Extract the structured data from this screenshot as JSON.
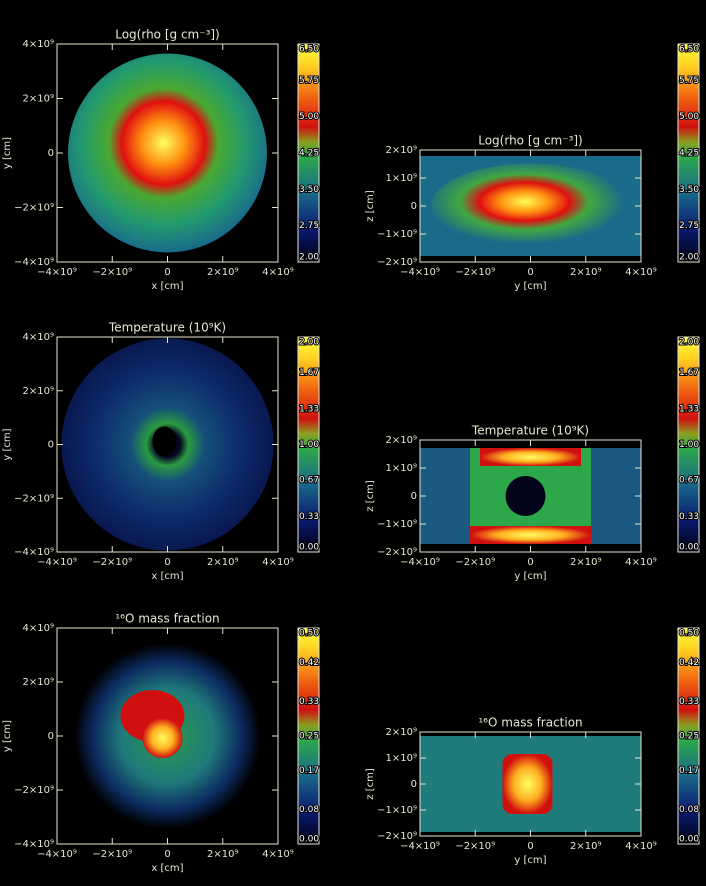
{
  "panels": [
    {
      "title": "Log(rho [g cm⁻³])",
      "x_label": "x [cm]",
      "y_label": "y [cm]",
      "xlim": [
        -4000000000,
        4000000000
      ],
      "ylim": [
        -4000000000,
        4000000000
      ],
      "xticks": [
        {
          "value": -4000000000,
          "label": "−4×10⁹"
        },
        {
          "value": -2000000000,
          "label": "−2×10⁹"
        },
        0,
        {
          "value": 2000000000,
          "label": "2×10⁹"
        },
        {
          "value": 4000000000,
          "label": "4×10⁹"
        }
      ],
      "yticks": [
        {
          "value": -4000000000,
          "label": "−4×10⁹"
        },
        {
          "value": -2000000000,
          "label": "−2×10⁹"
        },
        0,
        {
          "value": 2000000000,
          "label": "2×10⁹"
        },
        {
          "value": 4000000000,
          "label": "4×10⁹"
        }
      ],
      "colorbar": {
        "lim": [
          2,
          6.5
        ],
        "ticks": [
          {
            "value": 2,
            "label": "2.00"
          },
          2.75,
          {
            "value": 3.5,
            "label": "3.50"
          },
          4.25,
          {
            "value": 5,
            "label": "5.00"
          },
          5.75,
          {
            "value": 6.5,
            "label": "6.50"
          }
        ]
      }
    },
    {
      "title": "Log(rho [g cm⁻³])",
      "x_label": "y [cm]",
      "y_label": "z [cm]",
      "xlim": [
        -4000000000,
        4000000000
      ],
      "ylim": [
        -2000000000,
        2000000000
      ],
      "xticks": [
        {
          "value": -4000000000,
          "label": "−4×10⁹"
        },
        {
          "value": -2000000000,
          "label": "−2×10⁹"
        },
        0,
        {
          "value": 2000000000,
          "label": "2×10⁹"
        },
        {
          "value": 4000000000,
          "label": "4×10⁹"
        }
      ],
      "yticks": [
        {
          "value": -2000000000,
          "label": "−2×10⁹"
        },
        {
          "value": -1000000000,
          "label": "−1×10⁹"
        },
        0,
        {
          "value": 1000000000,
          "label": "1×10⁹"
        },
        {
          "value": 2000000000,
          "label": "2×10⁹"
        }
      ],
      "colorbar": {
        "lim": [
          2,
          6.5
        ],
        "ticks": [
          {
            "value": 2,
            "label": "2.00"
          },
          2.75,
          {
            "value": 3.5,
            "label": "3.50"
          },
          4.25,
          {
            "value": 5,
            "label": "5.00"
          },
          5.75,
          {
            "value": 6.5,
            "label": "6.50"
          }
        ]
      }
    },
    {
      "title": "Temperature (10⁹K)",
      "x_label": "x [cm]",
      "y_label": "y [cm]",
      "xlim": [
        -4000000000,
        4000000000
      ],
      "ylim": [
        -4000000000,
        4000000000
      ],
      "xticks": [
        {
          "value": -4000000000,
          "label": "−4×10⁹"
        },
        {
          "value": -2000000000,
          "label": "−2×10⁹"
        },
        0,
        {
          "value": 2000000000,
          "label": "2×10⁹"
        },
        {
          "value": 4000000000,
          "label": "4×10⁹"
        }
      ],
      "yticks": [
        {
          "value": -4000000000,
          "label": "−4×10⁹"
        },
        {
          "value": -2000000000,
          "label": "−2×10⁹"
        },
        0,
        {
          "value": 2000000000,
          "label": "2×10⁹"
        },
        {
          "value": 4000000000,
          "label": "4×10⁹"
        }
      ],
      "colorbar": {
        "lim": [
          0,
          2
        ],
        "ticks": [
          {
            "value": 0,
            "label": "0.00"
          },
          0.33,
          0.67,
          {
            "value": 1,
            "label": "1.00"
          },
          1.33,
          1.67,
          {
            "value": 2,
            "label": "2.00"
          }
        ]
      }
    },
    {
      "title": "Temperature (10⁹K)",
      "x_label": "y [cm]",
      "y_label": "z [cm]",
      "xlim": [
        -4000000000,
        4000000000
      ],
      "ylim": [
        -2000000000,
        2000000000
      ],
      "xticks": [
        {
          "value": -4000000000,
          "label": "−4×10⁹"
        },
        {
          "value": -2000000000,
          "label": "−2×10⁹"
        },
        0,
        {
          "value": 2000000000,
          "label": "2×10⁹"
        },
        {
          "value": 4000000000,
          "label": "4×10⁹"
        }
      ],
      "yticks": [
        {
          "value": -2000000000,
          "label": "−2×10⁹"
        },
        {
          "value": -1000000000,
          "label": "−1×10⁹"
        },
        0,
        {
          "value": 1000000000,
          "label": "1×10⁹"
        },
        {
          "value": 2000000000,
          "label": "2×10⁹"
        }
      ],
      "colorbar": {
        "lim": [
          0,
          2
        ],
        "ticks": [
          {
            "value": 0,
            "label": "0.00"
          },
          0.33,
          0.67,
          {
            "value": 1,
            "label": "1.00"
          },
          1.33,
          1.67,
          {
            "value": 2,
            "label": "2.00"
          }
        ]
      }
    },
    {
      "title": "¹⁶O mass fraction",
      "x_label": "x [cm]",
      "y_label": "y [cm]",
      "xlim": [
        -4000000000,
        4000000000
      ],
      "ylim": [
        -4000000000,
        4000000000
      ],
      "xticks": [
        {
          "value": -4000000000,
          "label": "−4×10⁹"
        },
        {
          "value": -2000000000,
          "label": "−2×10⁹"
        },
        0,
        {
          "value": 2000000000,
          "label": "2×10⁹"
        },
        {
          "value": 4000000000,
          "label": "4×10⁹"
        }
      ],
      "yticks": [
        {
          "value": -4000000000,
          "label": "−4×10⁹"
        },
        {
          "value": -2000000000,
          "label": "−2×10⁹"
        },
        0,
        {
          "value": 2000000000,
          "label": "2×10⁹"
        },
        {
          "value": 4000000000,
          "label": "4×10⁹"
        }
      ],
      "colorbar": {
        "lim": [
          0,
          0.5
        ],
        "ticks": [
          {
            "value": 0,
            "label": "0.00"
          },
          0.08,
          0.17,
          0.25,
          0.33,
          0.42,
          {
            "value": 0.5,
            "label": "0.50"
          }
        ]
      }
    },
    {
      "title": "¹⁶O mass fraction",
      "x_label": "y [cm]",
      "y_label": "z [cm]",
      "xlim": [
        -4000000000,
        4000000000
      ],
      "ylim": [
        -2000000000,
        2000000000
      ],
      "xticks": [
        {
          "value": -4000000000,
          "label": "−4×10⁹"
        },
        {
          "value": -2000000000,
          "label": "−2×10⁹"
        },
        0,
        {
          "value": 2000000000,
          "label": "2×10⁹"
        },
        {
          "value": 4000000000,
          "label": "4×10⁹"
        }
      ],
      "yticks": [
        {
          "value": -2000000000,
          "label": "−2×10⁹"
        },
        {
          "value": -1000000000,
          "label": "−1×10⁹"
        },
        0,
        {
          "value": 1000000000,
          "label": "1×10⁹"
        },
        {
          "value": 2000000000,
          "label": "2×10⁹"
        }
      ],
      "colorbar": {
        "lim": [
          0,
          0.5
        ],
        "ticks": [
          {
            "value": 0,
            "label": "0.00"
          },
          0.08,
          0.17,
          0.25,
          0.33,
          0.42,
          {
            "value": 0.5,
            "label": "0.50"
          }
        ]
      }
    }
  ]
}
